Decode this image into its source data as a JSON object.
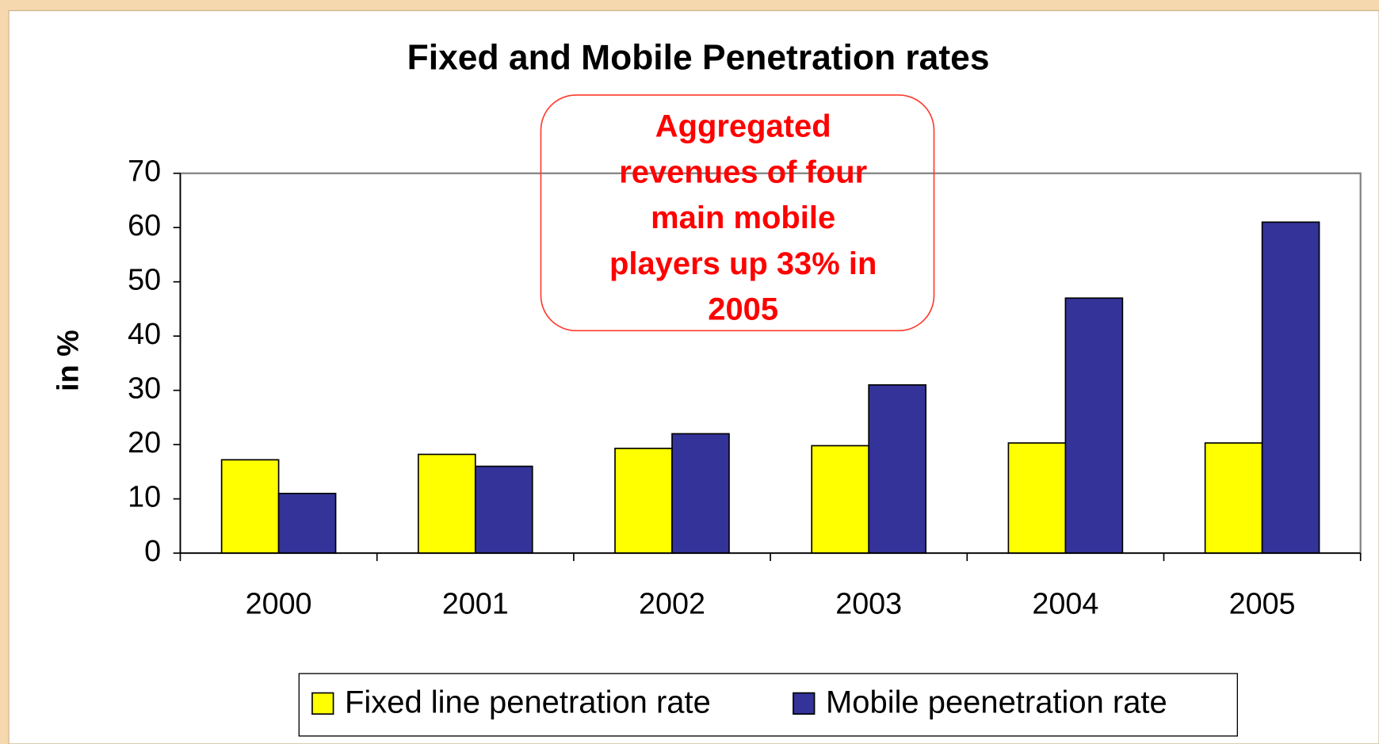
{
  "chart_data": {
    "type": "bar",
    "title": "Fixed and Mobile Penetration rates",
    "ylabel": "in %",
    "annotation": [
      "Aggregated",
      "revenues of four",
      "main mobile",
      "players up 33% in",
      "2005"
    ],
    "categories": [
      "2000",
      "2001",
      "2002",
      "2003",
      "2004",
      "2005"
    ],
    "series": [
      {
        "name": "Fixed line penetration rate",
        "color": "#ffff00",
        "values": [
          17.2,
          18.2,
          19.3,
          19.8,
          20.3,
          20.3
        ]
      },
      {
        "name": "Mobile peenetration rate",
        "color": "#333399",
        "values": [
          11,
          16,
          22,
          31,
          47,
          61
        ]
      }
    ],
    "ylim": [
      0,
      70
    ],
    "yticks": [
      0,
      10,
      20,
      30,
      40,
      50,
      60,
      70
    ],
    "legend": "bottom"
  }
}
